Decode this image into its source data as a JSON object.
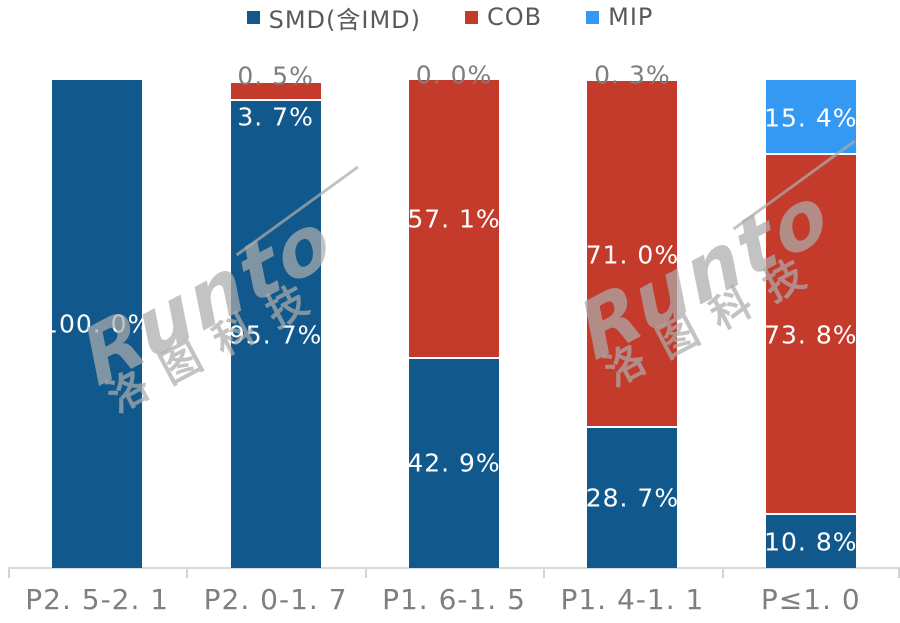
{
  "legend": {
    "items": [
      {
        "label": "SMD(含IMD)",
        "color": "#11598C",
        "icon": "legend-swatch-smd"
      },
      {
        "label": "COB",
        "color": "#C53B2B",
        "icon": "legend-swatch-cob"
      },
      {
        "label": "MIP",
        "color": "#3499F3",
        "icon": "legend-swatch-mip"
      }
    ]
  },
  "watermark": {
    "brand": "Runto",
    "cn": "洛图科技"
  },
  "colors": {
    "smd_blue": "#11598C",
    "cob_red": "#C53B2B",
    "mip_lightblue": "#3499F3",
    "label_gray": "#7F7F7F",
    "legend_text": "#595959",
    "axis_line": "#D9D9D9",
    "bar_label_white": "#FFFFFF"
  },
  "chart_data": {
    "type": "bar",
    "stacked": true,
    "title": "",
    "xlabel": "",
    "ylabel": "",
    "unit": "%",
    "ylim": [
      0,
      100
    ],
    "grid": false,
    "legend_position": "top",
    "categories": [
      "P2.5-2.1",
      "P2.0-1.7",
      "P1.6-1.5",
      "P1.4-1.1",
      "P≤1.0"
    ],
    "category_display": [
      "P2. 5-2. 1",
      "P2. 0-1. 7",
      "P1. 6-1. 5",
      "P1. 4-1. 1",
      "P≤1. 0"
    ],
    "series": [
      {
        "name": "SMD(含IMD)",
        "color": "#11598C",
        "values": [
          100.0,
          95.7,
          42.9,
          28.7,
          10.8
        ]
      },
      {
        "name": "COB",
        "color": "#C53B2B",
        "values": [
          0.0,
          3.7,
          57.1,
          71.0,
          73.8
        ]
      },
      {
        "name": "MIP",
        "color": "#3499F3",
        "values": [
          0.0,
          0.5,
          0.0,
          0.3,
          15.4
        ]
      }
    ],
    "bar_labels": [
      [
        {
          "text": "100. 0%",
          "pos": "center"
        },
        null,
        null
      ],
      [
        {
          "text": "95. 7%",
          "pos": "center"
        },
        {
          "text": "3. 7%",
          "pos": "below"
        },
        {
          "text": "0. 5%",
          "pos": "above"
        }
      ],
      [
        {
          "text": "42. 9%",
          "pos": "center"
        },
        {
          "text": "57. 1%",
          "pos": "center"
        },
        {
          "text": "0. 0%",
          "pos": "above"
        }
      ],
      [
        {
          "text": "28. 7%",
          "pos": "center"
        },
        {
          "text": "71. 0%",
          "pos": "center"
        },
        {
          "text": "0. 3%",
          "pos": "above"
        }
      ],
      [
        {
          "text": "10. 8%",
          "pos": "center"
        },
        {
          "text": "73. 8%",
          "pos": "center"
        },
        {
          "text": "15. 4%",
          "pos": "center"
        }
      ]
    ]
  }
}
